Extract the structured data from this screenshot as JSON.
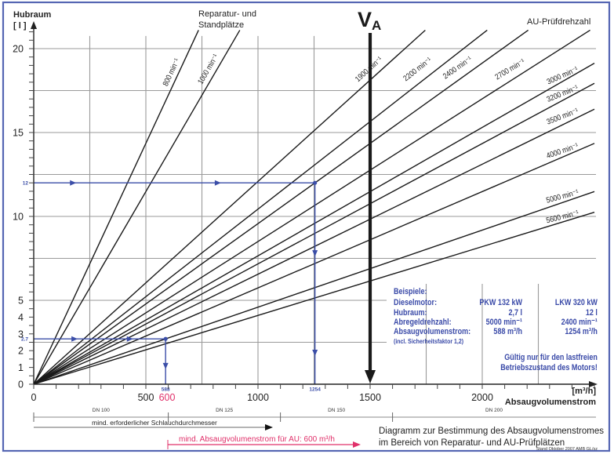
{
  "labels": {
    "y_axis_title": "Hubraum",
    "y_axis_unit": "[ l ]",
    "group_repair_line1": "Reparatur- und",
    "group_repair_line2": "Standplätze",
    "group_au": "AU-Prüfdrehzahl",
    "va_main": "V",
    "va_sub": "A",
    "x_unit": "[m³/h]",
    "x_axis_title": "Absaugvolumenstrom",
    "hose_caption": "mind. erforderlicher Schlauchdurchmesser",
    "min_flow_au": "mind. Absaugvolumenstrom für AU: 600 m³/h",
    "min_flow_value": "600",
    "footer_title_1": "Diagramm zur Bestimmung des Absaugvolumenstromes",
    "footer_title_2": "im Bereich von Reparatur- und AU-Prüfplätzen",
    "footer_stand": "Stand Oktober 2007 AMB GL/sz"
  },
  "examples_box": {
    "heading": "Beispiele:",
    "rows": [
      {
        "label": "Dieselmotor:",
        "pkw": "PKW 132 kW",
        "lkw": "LKW 320 kW"
      },
      {
        "label": "Hubraum:",
        "pkw": "2,7 l",
        "lkw": "12 l"
      },
      {
        "label": "Abregeldrehzahl:",
        "pkw": "5000 min⁻¹",
        "lkw": "2400 min⁻¹"
      },
      {
        "label": "Absaugvolumenstrom:",
        "pkw": "588 m³/h",
        "lkw": "1254 m³/h"
      }
    ],
    "footnote": "(incl. Sicherheitsfaktor 1,2)",
    "note_line1": "Gültig nur für den lastfreien",
    "note_line2": "Betriebszustand des Motors!"
  },
  "colors": {
    "frame": "#5566b3",
    "example_blue": "#3b4ea8",
    "highlight_pink": "#e0306a"
  },
  "chart_data": {
    "type": "line",
    "title": "Diagramm zur Bestimmung des Absaugvolumenstromes im Bereich von Reparatur- und AU-Prüfplätzen",
    "xlabel": "Absaugvolumenstrom",
    "xunit": "[m³/h]",
    "ylabel": "Hubraum",
    "yunit": "[ l ]",
    "xlim": [
      0,
      2500
    ],
    "ylim": [
      0,
      21.5
    ],
    "grid": true,
    "grid_x_step": 250,
    "grid_y_step": 2.5,
    "x_minor_step": 100,
    "y_minor_step": 0.5,
    "x_ticks": [
      {
        "value": 0,
        "label": "0"
      },
      {
        "value": 500,
        "label": "500"
      },
      {
        "value": 1000,
        "label": "1000"
      },
      {
        "value": 1500,
        "label": "1500"
      },
      {
        "value": 2000,
        "label": "2000"
      }
    ],
    "y_ticks": [
      {
        "value": 0,
        "label": "0"
      },
      {
        "value": 1,
        "label": "1"
      },
      {
        "value": 2,
        "label": "2"
      },
      {
        "value": 3,
        "label": "3"
      },
      {
        "value": 4,
        "label": "4"
      },
      {
        "value": 5,
        "label": "5"
      },
      {
        "value": 10,
        "label": "10"
      },
      {
        "value": 15,
        "label": "15"
      },
      {
        "value": 20,
        "label": "20"
      }
    ],
    "series": [
      {
        "name": "800 min⁻¹",
        "rpm": 800,
        "group": "Reparatur- und Standplätze",
        "points": [
          [
            0,
            0
          ],
          [
            735,
            21.1
          ]
        ]
      },
      {
        "name": "1000 min⁻¹",
        "rpm": 1000,
        "group": "Reparatur- und Standplätze",
        "points": [
          [
            0,
            0
          ],
          [
            919,
            21.1
          ]
        ]
      },
      {
        "name": "1900 min⁻¹",
        "rpm": 1900,
        "group": "AU-Prüfdrehzahl",
        "points": [
          [
            0,
            0
          ],
          [
            1746,
            21.1
          ]
        ]
      },
      {
        "name": "2200 min⁻¹",
        "rpm": 2200,
        "group": "AU-Prüfdrehzahl",
        "points": [
          [
            0,
            0
          ],
          [
            2022,
            21.1
          ]
        ]
      },
      {
        "name": "2400 min⁻¹",
        "rpm": 2400,
        "group": "AU-Prüfdrehzahl",
        "points": [
          [
            0,
            0
          ],
          [
            2205,
            21.1
          ]
        ]
      },
      {
        "name": "2700 min⁻¹",
        "rpm": 2700,
        "group": "AU-Prüfdrehzahl",
        "points": [
          [
            0,
            0
          ],
          [
            2481,
            21.1
          ]
        ]
      },
      {
        "name": "3000 min⁻¹",
        "rpm": 3000,
        "group": "AU-Prüfdrehzahl",
        "points": [
          [
            0,
            0
          ],
          [
            2500,
            19.13
          ]
        ]
      },
      {
        "name": "3200 min⁻¹",
        "rpm": 3200,
        "group": "AU-Prüfdrehzahl",
        "points": [
          [
            0,
            0
          ],
          [
            2500,
            17.93
          ]
        ]
      },
      {
        "name": "3500 min⁻¹",
        "rpm": 3500,
        "group": "AU-Prüfdrehzahl",
        "points": [
          [
            0,
            0
          ],
          [
            2500,
            16.39
          ]
        ]
      },
      {
        "name": "4000 min⁻¹",
        "rpm": 4000,
        "group": "AU-Prüfdrehzahl",
        "points": [
          [
            0,
            0
          ],
          [
            2500,
            14.35
          ]
        ]
      },
      {
        "name": "5000 min⁻¹",
        "rpm": 5000,
        "group": "AU-Prüfdrehzahl",
        "points": [
          [
            0,
            0
          ],
          [
            2500,
            11.48
          ]
        ]
      },
      {
        "name": "5600 min⁻¹",
        "rpm": 5600,
        "group": "AU-Prüfdrehzahl",
        "points": [
          [
            0,
            0
          ],
          [
            2500,
            10.25
          ]
        ]
      }
    ],
    "reference_line": {
      "name": "V_A",
      "x": 1500
    },
    "examples": [
      {
        "name": "PKW",
        "hubraum": 2.7,
        "flow": 588,
        "hubraum_label": "2.7",
        "flow_label": "588"
      },
      {
        "name": "LKW",
        "hubraum": 12,
        "flow": 1254,
        "hubraum_label": "12",
        "flow_label": "1254"
      }
    ],
    "dn_bands": [
      {
        "label": "DN 100",
        "from": 0,
        "to": 600
      },
      {
        "label": "DN 125",
        "from": 600,
        "to": 1100
      },
      {
        "label": "DN 150",
        "from": 1100,
        "to": 1600
      },
      {
        "label": "DN 200",
        "from": 1600,
        "to": 2500
      }
    ],
    "min_flow_au": 600
  }
}
